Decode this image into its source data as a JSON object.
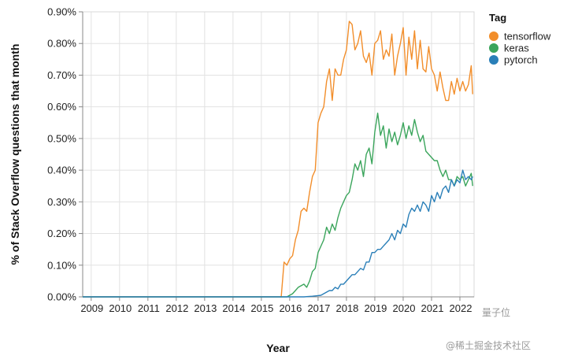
{
  "chart_data": {
    "type": "line",
    "xlabel": "Year",
    "ylabel": "% of Stack Overflow questions that month",
    "x_ticks": [
      "2009",
      "2010",
      "2011",
      "2012",
      "2013",
      "2014",
      "2015",
      "2016",
      "2017",
      "2018",
      "2019",
      "2020",
      "2021",
      "2022"
    ],
    "y_ticks": [
      "0.00%",
      "0.10%",
      "0.20%",
      "0.30%",
      "0.40%",
      "0.50%",
      "0.60%",
      "0.70%",
      "0.80%",
      "0.90%"
    ],
    "xlim": [
      2008.7,
      2022.5
    ],
    "ylim": [
      0,
      0.9
    ],
    "grid": true,
    "legend": {
      "title": "Tag",
      "position": "right"
    },
    "series": [
      {
        "name": "tensorflow",
        "color": "#f28e2b",
        "points": [
          [
            2008.7,
            0.0
          ],
          [
            2015.7,
            0.0
          ],
          [
            2015.8,
            0.11
          ],
          [
            2015.9,
            0.1
          ],
          [
            2016.0,
            0.12
          ],
          [
            2016.1,
            0.13
          ],
          [
            2016.2,
            0.18
          ],
          [
            2016.3,
            0.21
          ],
          [
            2016.4,
            0.27
          ],
          [
            2016.5,
            0.28
          ],
          [
            2016.6,
            0.27
          ],
          [
            2016.7,
            0.33
          ],
          [
            2016.8,
            0.38
          ],
          [
            2016.9,
            0.4
          ],
          [
            2017.0,
            0.55
          ],
          [
            2017.1,
            0.58
          ],
          [
            2017.2,
            0.6
          ],
          [
            2017.3,
            0.68
          ],
          [
            2017.4,
            0.72
          ],
          [
            2017.5,
            0.62
          ],
          [
            2017.6,
            0.72
          ],
          [
            2017.7,
            0.7
          ],
          [
            2017.8,
            0.7
          ],
          [
            2017.9,
            0.75
          ],
          [
            2018.0,
            0.78
          ],
          [
            2018.1,
            0.87
          ],
          [
            2018.2,
            0.86
          ],
          [
            2018.3,
            0.78
          ],
          [
            2018.4,
            0.8
          ],
          [
            2018.5,
            0.84
          ],
          [
            2018.6,
            0.76
          ],
          [
            2018.7,
            0.74
          ],
          [
            2018.8,
            0.77
          ],
          [
            2018.9,
            0.7
          ],
          [
            2019.0,
            0.8
          ],
          [
            2019.1,
            0.81
          ],
          [
            2019.2,
            0.84
          ],
          [
            2019.3,
            0.75
          ],
          [
            2019.4,
            0.78
          ],
          [
            2019.5,
            0.76
          ],
          [
            2019.6,
            0.83
          ],
          [
            2019.7,
            0.7
          ],
          [
            2019.8,
            0.76
          ],
          [
            2019.9,
            0.8
          ],
          [
            2020.0,
            0.85
          ],
          [
            2020.1,
            0.7
          ],
          [
            2020.2,
            0.82
          ],
          [
            2020.3,
            0.75
          ],
          [
            2020.4,
            0.84
          ],
          [
            2020.5,
            0.72
          ],
          [
            2020.6,
            0.81
          ],
          [
            2020.7,
            0.72
          ],
          [
            2020.8,
            0.71
          ],
          [
            2020.9,
            0.79
          ],
          [
            2021.0,
            0.72
          ],
          [
            2021.1,
            0.7
          ],
          [
            2021.2,
            0.65
          ],
          [
            2021.3,
            0.71
          ],
          [
            2021.4,
            0.66
          ],
          [
            2021.5,
            0.62
          ],
          [
            2021.6,
            0.62
          ],
          [
            2021.7,
            0.68
          ],
          [
            2021.8,
            0.64
          ],
          [
            2021.9,
            0.69
          ],
          [
            2022.0,
            0.65
          ],
          [
            2022.1,
            0.68
          ],
          [
            2022.2,
            0.65
          ],
          [
            2022.3,
            0.67
          ],
          [
            2022.4,
            0.73
          ],
          [
            2022.45,
            0.64
          ]
        ]
      },
      {
        "name": "keras",
        "color": "#3ba55c",
        "points": [
          [
            2008.7,
            0.0
          ],
          [
            2015.9,
            0.0
          ],
          [
            2016.0,
            0.005
          ],
          [
            2016.1,
            0.01
          ],
          [
            2016.2,
            0.02
          ],
          [
            2016.3,
            0.03
          ],
          [
            2016.4,
            0.035
          ],
          [
            2016.5,
            0.04
          ],
          [
            2016.6,
            0.03
          ],
          [
            2016.7,
            0.05
          ],
          [
            2016.8,
            0.08
          ],
          [
            2016.9,
            0.09
          ],
          [
            2017.0,
            0.14
          ],
          [
            2017.1,
            0.16
          ],
          [
            2017.2,
            0.18
          ],
          [
            2017.3,
            0.22
          ],
          [
            2017.4,
            0.2
          ],
          [
            2017.5,
            0.23
          ],
          [
            2017.6,
            0.21
          ],
          [
            2017.7,
            0.25
          ],
          [
            2017.8,
            0.28
          ],
          [
            2017.9,
            0.3
          ],
          [
            2018.0,
            0.32
          ],
          [
            2018.1,
            0.33
          ],
          [
            2018.2,
            0.37
          ],
          [
            2018.3,
            0.42
          ],
          [
            2018.4,
            0.4
          ],
          [
            2018.5,
            0.43
          ],
          [
            2018.6,
            0.38
          ],
          [
            2018.7,
            0.45
          ],
          [
            2018.8,
            0.47
          ],
          [
            2018.9,
            0.42
          ],
          [
            2019.0,
            0.52
          ],
          [
            2019.1,
            0.58
          ],
          [
            2019.2,
            0.51
          ],
          [
            2019.3,
            0.54
          ],
          [
            2019.4,
            0.47
          ],
          [
            2019.5,
            0.53
          ],
          [
            2019.6,
            0.49
          ],
          [
            2019.7,
            0.52
          ],
          [
            2019.8,
            0.48
          ],
          [
            2019.9,
            0.51
          ],
          [
            2020.0,
            0.55
          ],
          [
            2020.1,
            0.5
          ],
          [
            2020.2,
            0.54
          ],
          [
            2020.3,
            0.51
          ],
          [
            2020.4,
            0.56
          ],
          [
            2020.5,
            0.52
          ],
          [
            2020.6,
            0.49
          ],
          [
            2020.7,
            0.51
          ],
          [
            2020.8,
            0.46
          ],
          [
            2020.9,
            0.45
          ],
          [
            2021.0,
            0.44
          ],
          [
            2021.1,
            0.43
          ],
          [
            2021.2,
            0.43
          ],
          [
            2021.3,
            0.4
          ],
          [
            2021.4,
            0.38
          ],
          [
            2021.5,
            0.4
          ],
          [
            2021.6,
            0.37
          ],
          [
            2021.7,
            0.37
          ],
          [
            2021.8,
            0.35
          ],
          [
            2021.9,
            0.38
          ],
          [
            2022.0,
            0.37
          ],
          [
            2022.1,
            0.38
          ],
          [
            2022.2,
            0.35
          ],
          [
            2022.3,
            0.37
          ],
          [
            2022.4,
            0.39
          ],
          [
            2022.45,
            0.35
          ]
        ]
      },
      {
        "name": "pytorch",
        "color": "#2a7fb8",
        "points": [
          [
            2008.7,
            0.0
          ],
          [
            2016.5,
            0.0
          ],
          [
            2016.8,
            0.002
          ],
          [
            2017.0,
            0.004
          ],
          [
            2017.1,
            0.005
          ],
          [
            2017.2,
            0.01
          ],
          [
            2017.3,
            0.015
          ],
          [
            2017.4,
            0.02
          ],
          [
            2017.5,
            0.02
          ],
          [
            2017.6,
            0.03
          ],
          [
            2017.7,
            0.025
          ],
          [
            2017.8,
            0.04
          ],
          [
            2017.9,
            0.04
          ],
          [
            2018.0,
            0.05
          ],
          [
            2018.1,
            0.06
          ],
          [
            2018.2,
            0.07
          ],
          [
            2018.3,
            0.07
          ],
          [
            2018.4,
            0.08
          ],
          [
            2018.5,
            0.09
          ],
          [
            2018.6,
            0.085
          ],
          [
            2018.7,
            0.11
          ],
          [
            2018.8,
            0.11
          ],
          [
            2018.9,
            0.14
          ],
          [
            2019.0,
            0.14
          ],
          [
            2019.1,
            0.15
          ],
          [
            2019.2,
            0.15
          ],
          [
            2019.3,
            0.16
          ],
          [
            2019.4,
            0.17
          ],
          [
            2019.5,
            0.18
          ],
          [
            2019.6,
            0.2
          ],
          [
            2019.7,
            0.18
          ],
          [
            2019.8,
            0.21
          ],
          [
            2019.9,
            0.2
          ],
          [
            2020.0,
            0.23
          ],
          [
            2020.1,
            0.22
          ],
          [
            2020.2,
            0.26
          ],
          [
            2020.3,
            0.28
          ],
          [
            2020.4,
            0.27
          ],
          [
            2020.5,
            0.29
          ],
          [
            2020.6,
            0.27
          ],
          [
            2020.7,
            0.3
          ],
          [
            2020.8,
            0.29
          ],
          [
            2020.9,
            0.27
          ],
          [
            2021.0,
            0.32
          ],
          [
            2021.1,
            0.3
          ],
          [
            2021.2,
            0.33
          ],
          [
            2021.3,
            0.31
          ],
          [
            2021.4,
            0.34
          ],
          [
            2021.5,
            0.35
          ],
          [
            2021.6,
            0.33
          ],
          [
            2021.7,
            0.37
          ],
          [
            2021.8,
            0.35
          ],
          [
            2021.9,
            0.37
          ],
          [
            2022.0,
            0.36
          ],
          [
            2022.1,
            0.4
          ],
          [
            2022.2,
            0.37
          ],
          [
            2022.3,
            0.38
          ],
          [
            2022.4,
            0.37
          ],
          [
            2022.45,
            0.38
          ]
        ]
      }
    ]
  },
  "watermark": {
    "line1": "量子位",
    "line2": "@稀土掘金技术社区"
  }
}
